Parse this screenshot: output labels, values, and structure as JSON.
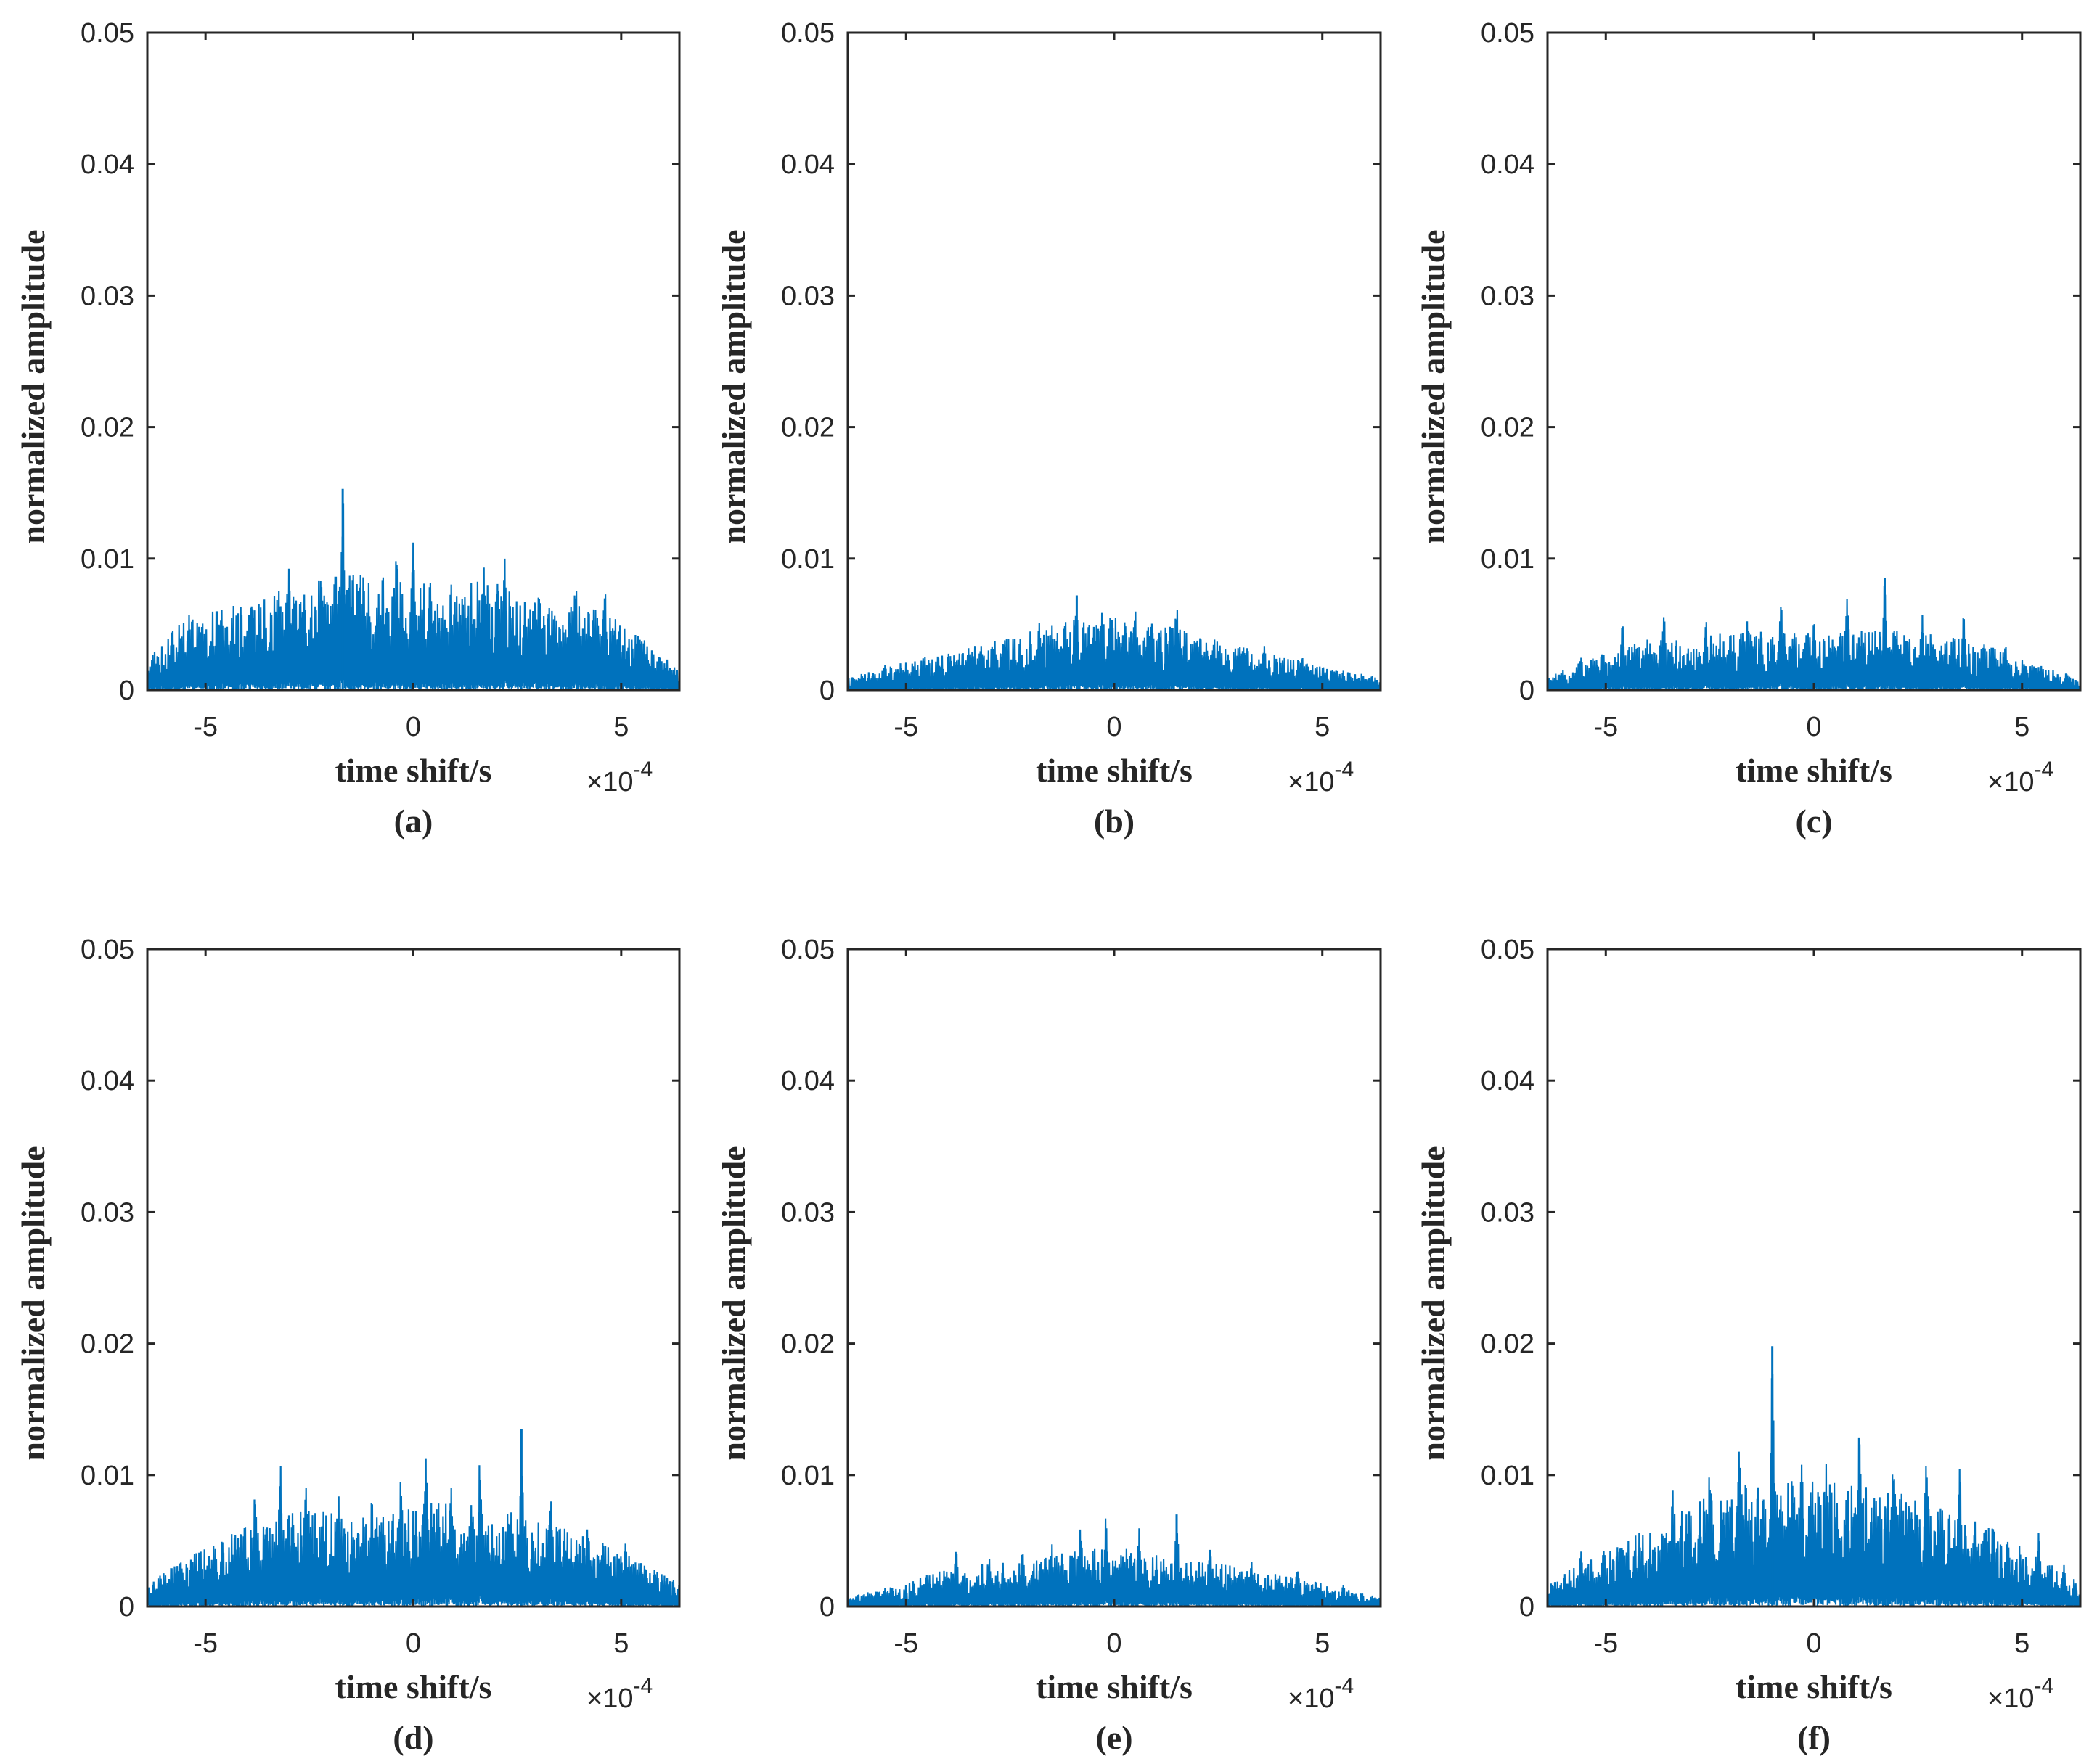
{
  "chart_data": [
    {
      "panel": "(a)",
      "type": "line",
      "xlabel": "time shift/s",
      "ylabel": "normalized amplitude",
      "x_exponent_label": "×10",
      "x_exponent_power": "-4",
      "xlim": [
        -6.4,
        6.4
      ],
      "ylim": [
        0,
        0.05
      ],
      "xticks": [
        -5,
        0,
        5
      ],
      "xtick_labels": [
        "-5",
        "0",
        "5"
      ],
      "yticks": [
        0,
        0.01,
        0.02,
        0.03,
        0.04,
        0.05
      ],
      "ytick_labels": [
        "0",
        "0.01",
        "0.02",
        "0.03",
        "0.04",
        "0.05"
      ],
      "peak_x": -1.7,
      "peak_y": 0.0153,
      "peaks": [
        [
          -5.4,
          0.0061
        ],
        [
          -4.6,
          0.0065
        ],
        [
          -3.9,
          0.0075
        ],
        [
          -3.0,
          0.0095
        ],
        [
          -2.2,
          0.0088
        ],
        [
          -1.7,
          0.0153
        ],
        [
          -1.2,
          0.0098
        ],
        [
          -0.4,
          0.0122
        ],
        [
          0.0,
          0.0118
        ],
        [
          0.4,
          0.0098
        ],
        [
          1.0,
          0.0078
        ],
        [
          1.7,
          0.0105
        ],
        [
          2.2,
          0.0103
        ],
        [
          2.9,
          0.0078
        ],
        [
          3.9,
          0.0088
        ],
        [
          4.6,
          0.0084
        ],
        [
          5.5,
          0.004
        ]
      ],
      "envelope": [
        [
          -6.4,
          0.0022
        ],
        [
          -5.5,
          0.0045
        ],
        [
          -4.5,
          0.0055
        ],
        [
          -3.5,
          0.0062
        ],
        [
          -2.5,
          0.0068
        ],
        [
          -1.5,
          0.0075
        ],
        [
          -0.5,
          0.0072
        ],
        [
          0.5,
          0.0068
        ],
        [
          1.5,
          0.007
        ],
        [
          2.5,
          0.0065
        ],
        [
          3.5,
          0.0058
        ],
        [
          4.5,
          0.0052
        ],
        [
          5.5,
          0.0035
        ],
        [
          6.4,
          0.0012
        ]
      ],
      "series_color": "#0072bd"
    },
    {
      "panel": "(b)",
      "type": "line",
      "xlabel": "time shift/s",
      "ylabel": "normalized amplitude",
      "x_exponent_label": "×10",
      "x_exponent_power": "-4",
      "xlim": [
        -6.4,
        6.4
      ],
      "ylim": [
        0,
        0.05
      ],
      "xticks": [
        -5,
        0,
        5
      ],
      "xtick_labels": [
        "-5",
        "0",
        "5"
      ],
      "yticks": [
        0,
        0.01,
        0.02,
        0.03,
        0.04,
        0.05
      ],
      "ytick_labels": [
        "0",
        "0.01",
        "0.02",
        "0.03",
        "0.04",
        "0.05"
      ],
      "peak_x": -0.9,
      "peak_y": 0.0072,
      "peaks": [
        [
          -5.5,
          0.002
        ],
        [
          -4.5,
          0.0025
        ],
        [
          -3.5,
          0.0038
        ],
        [
          -2.6,
          0.0042
        ],
        [
          -1.8,
          0.0058
        ],
        [
          -0.9,
          0.0072
        ],
        [
          -0.3,
          0.0068
        ],
        [
          0.5,
          0.0068
        ],
        [
          1.5,
          0.0071
        ],
        [
          2.4,
          0.0042
        ],
        [
          3.6,
          0.0039
        ],
        [
          4.5,
          0.003
        ],
        [
          5.5,
          0.0015
        ]
      ],
      "envelope": [
        [
          -6.4,
          0.0008
        ],
        [
          -5,
          0.0018
        ],
        [
          -4,
          0.0025
        ],
        [
          -3,
          0.003
        ],
        [
          -2,
          0.0038
        ],
        [
          -1,
          0.0045
        ],
        [
          0,
          0.0046
        ],
        [
          1,
          0.0043
        ],
        [
          2,
          0.0035
        ],
        [
          3,
          0.0028
        ],
        [
          4,
          0.0022
        ],
        [
          5,
          0.0015
        ],
        [
          6.4,
          0.0008
        ]
      ],
      "series_color": "#0072bd"
    },
    {
      "panel": "(c)",
      "type": "line",
      "xlabel": "time shift/s",
      "ylabel": "normalized amplitude",
      "x_exponent_label": "×10",
      "x_exponent_power": "-4",
      "xlim": [
        -6.4,
        6.4
      ],
      "ylim": [
        0,
        0.05
      ],
      "xticks": [
        -5,
        0,
        5
      ],
      "xtick_labels": [
        "-5",
        "0",
        "5"
      ],
      "yticks": [
        0,
        0.01,
        0.02,
        0.03,
        0.04,
        0.05
      ],
      "ytick_labels": [
        "0",
        "0.01",
        "0.02",
        "0.03",
        "0.04",
        "0.05"
      ],
      "peak_x": 1.7,
      "peak_y": 0.0085,
      "peaks": [
        [
          -5.6,
          0.0025
        ],
        [
          -4.6,
          0.0052
        ],
        [
          -3.6,
          0.0058
        ],
        [
          -2.6,
          0.0058
        ],
        [
          -1.6,
          0.0055
        ],
        [
          -0.8,
          0.0075
        ],
        [
          0.0,
          0.0058
        ],
        [
          0.8,
          0.0078
        ],
        [
          1.7,
          0.0085
        ],
        [
          2.6,
          0.006
        ],
        [
          3.6,
          0.0058
        ],
        [
          4.6,
          0.0038
        ],
        [
          5.5,
          0.0015
        ]
      ],
      "envelope": [
        [
          -6.4,
          0.0008
        ],
        [
          -5,
          0.0025
        ],
        [
          -4,
          0.0032
        ],
        [
          -3,
          0.0035
        ],
        [
          -2,
          0.0036
        ],
        [
          -1,
          0.0038
        ],
        [
          0,
          0.0036
        ],
        [
          1,
          0.0038
        ],
        [
          2,
          0.0038
        ],
        [
          3,
          0.0035
        ],
        [
          4,
          0.003
        ],
        [
          5,
          0.002
        ],
        [
          6.4,
          0.0008
        ]
      ],
      "series_color": "#0072bd"
    },
    {
      "panel": "(d)",
      "type": "line",
      "xlabel": "time shift/s",
      "ylabel": "normalized amplitude",
      "x_exponent_label": "×10",
      "x_exponent_power": "-4",
      "xlim": [
        -6.4,
        6.4
      ],
      "ylim": [
        0,
        0.05
      ],
      "xticks": [
        -5,
        0,
        5
      ],
      "xtick_labels": [
        "-5",
        "0",
        "5"
      ],
      "yticks": [
        0,
        0.01,
        0.02,
        0.03,
        0.04,
        0.05
      ],
      "ytick_labels": [
        "0",
        "0.01",
        "0.02",
        "0.03",
        "0.04",
        "0.05"
      ],
      "peak_x": 2.6,
      "peak_y": 0.0135,
      "peaks": [
        [
          -5.6,
          0.0038
        ],
        [
          -4.6,
          0.0055
        ],
        [
          -3.8,
          0.0098
        ],
        [
          -3.2,
          0.0112
        ],
        [
          -2.6,
          0.0102
        ],
        [
          -1.8,
          0.0085
        ],
        [
          -1.0,
          0.0088
        ],
        [
          -0.3,
          0.0102
        ],
        [
          0.3,
          0.0133
        ],
        [
          0.9,
          0.0105
        ],
        [
          1.6,
          0.0115
        ],
        [
          2.6,
          0.0135
        ],
        [
          3.3,
          0.0085
        ],
        [
          4.2,
          0.0065
        ],
        [
          5.1,
          0.0052
        ],
        [
          5.8,
          0.003
        ]
      ],
      "envelope": [
        [
          -6.4,
          0.0015
        ],
        [
          -5.5,
          0.003
        ],
        [
          -4.5,
          0.0045
        ],
        [
          -3.5,
          0.0058
        ],
        [
          -2.5,
          0.0062
        ],
        [
          -1.5,
          0.0058
        ],
        [
          -0.5,
          0.0062
        ],
        [
          0.5,
          0.0068
        ],
        [
          1.5,
          0.0065
        ],
        [
          2.5,
          0.006
        ],
        [
          3.5,
          0.0052
        ],
        [
          4.5,
          0.0042
        ],
        [
          5.5,
          0.0028
        ],
        [
          6.4,
          0.0015
        ]
      ],
      "series_color": "#0072bd"
    },
    {
      "panel": "(e)",
      "type": "line",
      "xlabel": "time shift/s",
      "ylabel": "normalized amplitude",
      "x_exponent_label": "×10",
      "x_exponent_power": "-4",
      "xlim": [
        -6.4,
        6.4
      ],
      "ylim": [
        0,
        0.05
      ],
      "xticks": [
        -5,
        0,
        5
      ],
      "xtick_labels": [
        "-5",
        "0",
        "5"
      ],
      "yticks": [
        0,
        0.01,
        0.02,
        0.03,
        0.04,
        0.05
      ],
      "ytick_labels": [
        "0",
        "0.01",
        "0.02",
        "0.03",
        "0.04",
        "0.05"
      ],
      "peak_x": 1.5,
      "peak_y": 0.007,
      "peaks": [
        [
          -5.5,
          0.0015
        ],
        [
          -4.5,
          0.0028
        ],
        [
          -3.8,
          0.0048
        ],
        [
          -3.0,
          0.0038
        ],
        [
          -2.2,
          0.0042
        ],
        [
          -1.5,
          0.0048
        ],
        [
          -0.8,
          0.0065
        ],
        [
          -0.2,
          0.0068
        ],
        [
          0.6,
          0.0062
        ],
        [
          1.5,
          0.007
        ],
        [
          2.3,
          0.0045
        ],
        [
          3.3,
          0.0038
        ],
        [
          4.4,
          0.0035
        ],
        [
          5.5,
          0.0018
        ]
      ],
      "envelope": [
        [
          -6.4,
          0.0006
        ],
        [
          -5,
          0.0015
        ],
        [
          -4,
          0.0025
        ],
        [
          -3,
          0.0028
        ],
        [
          -2,
          0.003
        ],
        [
          -1,
          0.0035
        ],
        [
          0,
          0.0038
        ],
        [
          1,
          0.0036
        ],
        [
          2,
          0.003
        ],
        [
          3,
          0.0025
        ],
        [
          4,
          0.002
        ],
        [
          5,
          0.0015
        ],
        [
          6.4,
          0.0006
        ]
      ],
      "series_color": "#0072bd"
    },
    {
      "panel": "(f)",
      "type": "line",
      "xlabel": "time shift/s",
      "ylabel": "normalized amplitude",
      "x_exponent_label": "×10",
      "x_exponent_power": "-4",
      "xlim": [
        -6.4,
        6.4
      ],
      "ylim": [
        0,
        0.05
      ],
      "xticks": [
        -5,
        0,
        5
      ],
      "xtick_labels": [
        "-5",
        "0",
        "5"
      ],
      "yticks": [
        0,
        0.01,
        0.02,
        0.03,
        0.04,
        0.05
      ],
      "ytick_labels": [
        "0",
        "0.01",
        "0.02",
        "0.03",
        "0.04",
        "0.05"
      ],
      "peak_x": -1.0,
      "peak_y": 0.0198,
      "peaks": [
        [
          -5.6,
          0.0045
        ],
        [
          -4.6,
          0.0052
        ],
        [
          -3.4,
          0.0092
        ],
        [
          -2.5,
          0.0118
        ],
        [
          -1.8,
          0.0128
        ],
        [
          -1.0,
          0.0198
        ],
        [
          -0.3,
          0.0128
        ],
        [
          0.3,
          0.0118
        ],
        [
          1.1,
          0.0155
        ],
        [
          1.9,
          0.0128
        ],
        [
          2.7,
          0.0128
        ],
        [
          3.5,
          0.0118
        ],
        [
          4.3,
          0.0072
        ],
        [
          5.4,
          0.0062
        ],
        [
          6.0,
          0.0035
        ]
      ],
      "envelope": [
        [
          -6.4,
          0.0015
        ],
        [
          -5.5,
          0.003
        ],
        [
          -4.5,
          0.0042
        ],
        [
          -3.5,
          0.0058
        ],
        [
          -2.5,
          0.007
        ],
        [
          -1.5,
          0.0078
        ],
        [
          -0.5,
          0.008
        ],
        [
          0.5,
          0.008
        ],
        [
          1.5,
          0.0078
        ],
        [
          2.5,
          0.007
        ],
        [
          3.5,
          0.0062
        ],
        [
          4.5,
          0.0045
        ],
        [
          5.5,
          0.003
        ],
        [
          6.4,
          0.0015
        ]
      ],
      "series_color": "#0072bd"
    }
  ]
}
